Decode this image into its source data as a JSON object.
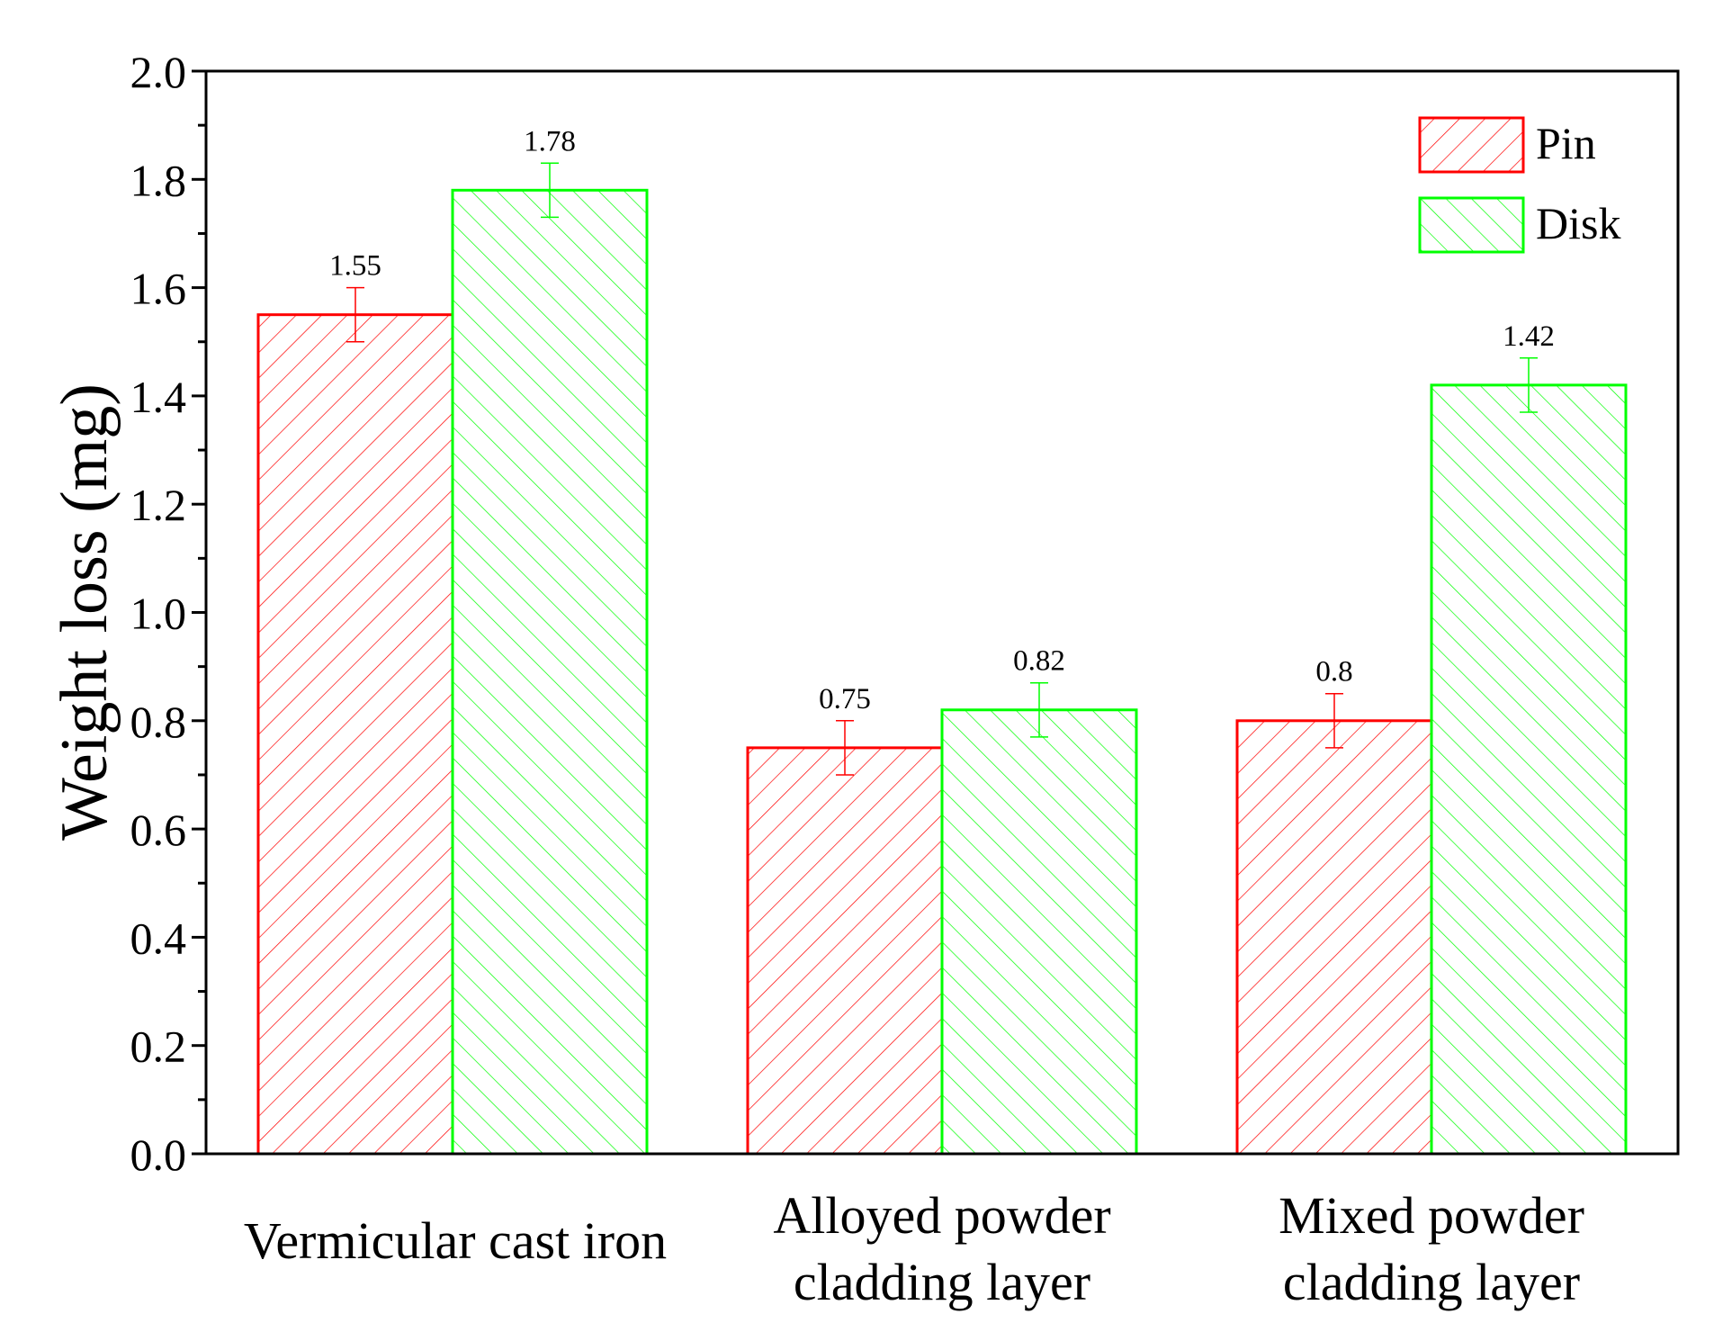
{
  "chart_data": {
    "type": "bar",
    "title": "",
    "xlabel": "",
    "ylabel": "Weight loss (mg)",
    "ylim": [
      0,
      2.0
    ],
    "ytick_step": 0.2,
    "yticks": [
      "0.0",
      "0.2",
      "0.4",
      "0.6",
      "0.8",
      "1.0",
      "1.2",
      "1.4",
      "1.6",
      "1.8",
      "2.0"
    ],
    "categories": [
      [
        "Vermicular cast iron"
      ],
      [
        "Alloyed powder",
        "cladding layer"
      ],
      [
        "Mixed powder",
        "cladding layer"
      ]
    ],
    "series": [
      {
        "name": "Pin",
        "color": "#ff0000",
        "hatch": "backslash",
        "values": [
          1.55,
          0.75,
          0.8
        ],
        "errors": [
          0.05,
          0.05,
          0.05
        ],
        "labels": [
          "1.55",
          "0.75",
          "0.8"
        ]
      },
      {
        "name": "Disk",
        "color": "#00ff00",
        "hatch": "slash",
        "values": [
          1.78,
          0.82,
          1.42
        ],
        "errors": [
          0.05,
          0.05,
          0.05
        ],
        "labels": [
          "1.78",
          "0.82",
          "1.42"
        ]
      }
    ],
    "legend": {
      "position": "top-right"
    },
    "grid": false
  }
}
